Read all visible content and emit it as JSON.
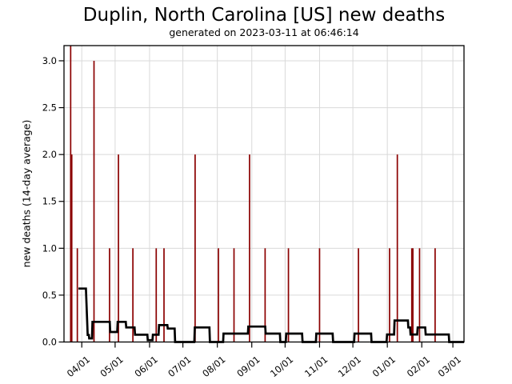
{
  "header": {
    "title": "Duplin, North Carolina [US] new deaths",
    "subtitle": "generated on 2023-03-11 at 06:46:14"
  },
  "colors": {
    "background": "#ffffff",
    "grid": "#d9d9d9",
    "spine": "#000000",
    "spike": "#8b0000",
    "avg_line": "#000000",
    "text": "#000000"
  },
  "chart_data": {
    "type": "line",
    "title": "Duplin, North Carolina [US] new deaths",
    "subtitle": "generated on 2023-03-11 at 06:46:14",
    "xlabel": "",
    "ylabel": "new deaths (14-day average)",
    "ylim": [
      0,
      3.16
    ],
    "grid": true,
    "legend": "none",
    "y_ticks": [
      0.0,
      0.5,
      1.0,
      1.5,
      2.0,
      2.5,
      3.0
    ],
    "y_tick_labels": [
      "0.0",
      "0.5",
      "1.0",
      "1.5",
      "2.0",
      "2.5",
      "3.0"
    ],
    "x_axis": {
      "start_date": "2022-03-16",
      "end_date": "2023-03-11",
      "span_days": 360,
      "tick_labels": [
        "04/01",
        "05/01",
        "06/01",
        "07/01",
        "08/01",
        "09/01",
        "10/01",
        "11/01",
        "12/01",
        "01/01",
        "02/01",
        "03/01"
      ],
      "tick_days": [
        16,
        46,
        77,
        107,
        138,
        169,
        199,
        230,
        260,
        291,
        322,
        350
      ]
    },
    "series": [
      {
        "name": "daily new deaths",
        "type": "bar",
        "color": "#8b0000",
        "note": "first spike clipped by top of plot; value estimated",
        "points": [
          {
            "date": "2022-03-22",
            "day": 6,
            "value": 4
          },
          {
            "date": "2022-03-23",
            "day": 7,
            "value": 2
          },
          {
            "date": "2022-03-28",
            "day": 12,
            "value": 1
          },
          {
            "date": "2022-04-12",
            "day": 27,
            "value": 3
          },
          {
            "date": "2022-04-26",
            "day": 41,
            "value": 1
          },
          {
            "date": "2022-05-04",
            "day": 49,
            "value": 2
          },
          {
            "date": "2022-05-17",
            "day": 62,
            "value": 1
          },
          {
            "date": "2022-06-07",
            "day": 83,
            "value": 1
          },
          {
            "date": "2022-06-14",
            "day": 90,
            "value": 1
          },
          {
            "date": "2022-07-12",
            "day": 118,
            "value": 2
          },
          {
            "date": "2022-08-02",
            "day": 139,
            "value": 1
          },
          {
            "date": "2022-08-16",
            "day": 153,
            "value": 1
          },
          {
            "date": "2022-08-30",
            "day": 167,
            "value": 2
          },
          {
            "date": "2022-09-13",
            "day": 181,
            "value": 1
          },
          {
            "date": "2022-10-04",
            "day": 202,
            "value": 1
          },
          {
            "date": "2022-11-01",
            "day": 230,
            "value": 1
          },
          {
            "date": "2022-12-06",
            "day": 265,
            "value": 1
          },
          {
            "date": "2023-01-03",
            "day": 293,
            "value": 1
          },
          {
            "date": "2023-01-10",
            "day": 300,
            "value": 2
          },
          {
            "date": "2023-01-23",
            "day": 313,
            "value": 1
          },
          {
            "date": "2023-01-24",
            "day": 314,
            "value": 1
          },
          {
            "date": "2023-01-30",
            "day": 320,
            "value": 1
          },
          {
            "date": "2023-02-13",
            "day": 334,
            "value": 1
          }
        ]
      },
      {
        "name": "new deaths (14-day average)",
        "type": "line",
        "color": "#000000",
        "points": [
          [
            13,
            0.57
          ],
          [
            19.7,
            0.57
          ],
          [
            21.3,
            0.075
          ],
          [
            22.4,
            0.075
          ],
          [
            22.7,
            0.038
          ],
          [
            25.2,
            0.038
          ],
          [
            25.6,
            0.215
          ],
          [
            41.2,
            0.215
          ],
          [
            41.6,
            0.107
          ],
          [
            47.9,
            0.107
          ],
          [
            48.3,
            0.215
          ],
          [
            55.6,
            0.215
          ],
          [
            56,
            0.155
          ],
          [
            63.5,
            0.155
          ],
          [
            63.9,
            0.078
          ],
          [
            75,
            0.078
          ],
          [
            75.4,
            0.02
          ],
          [
            79.6,
            0.02
          ],
          [
            80,
            0.078
          ],
          [
            85.1,
            0.078
          ],
          [
            85.5,
            0.18
          ],
          [
            93,
            0.18
          ],
          [
            93.4,
            0.143
          ],
          [
            99.6,
            0.143
          ],
          [
            100,
            0
          ],
          [
            117.3,
            0
          ],
          [
            117.7,
            0.155
          ],
          [
            130.9,
            0.155
          ],
          [
            131.3,
            0
          ],
          [
            143.2,
            0
          ],
          [
            143.6,
            0.09
          ],
          [
            165.5,
            0.09
          ],
          [
            165.9,
            0.165
          ],
          [
            181.1,
            0.165
          ],
          [
            181.5,
            0.09
          ],
          [
            194.3,
            0.09
          ],
          [
            194.7,
            0
          ],
          [
            199.6,
            0
          ],
          [
            200,
            0.09
          ],
          [
            214.3,
            0.09
          ],
          [
            214.7,
            0
          ],
          [
            226.7,
            0
          ],
          [
            227.1,
            0.09
          ],
          [
            241.8,
            0.09
          ],
          [
            242.2,
            0
          ],
          [
            261.1,
            0
          ],
          [
            261.5,
            0.09
          ],
          [
            276.4,
            0.09
          ],
          [
            276.8,
            0
          ],
          [
            290.3,
            0
          ],
          [
            290.7,
            0.08
          ],
          [
            297.1,
            0.08
          ],
          [
            297.5,
            0.23
          ],
          [
            309.5,
            0.23
          ],
          [
            309.9,
            0.155
          ],
          [
            311.5,
            0.155
          ],
          [
            311.9,
            0.08
          ],
          [
            317.9,
            0.08
          ],
          [
            318.3,
            0.155
          ],
          [
            325.1,
            0.155
          ],
          [
            325.5,
            0.08
          ],
          [
            346.3,
            0.08
          ],
          [
            346.7,
            0
          ],
          [
            360,
            0
          ]
        ]
      }
    ]
  }
}
